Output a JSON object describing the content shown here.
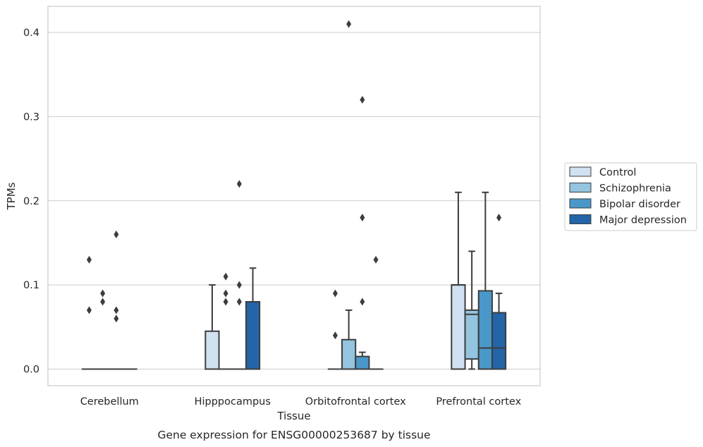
{
  "chart_data": {
    "type": "box",
    "xlabel": "Tissue",
    "ylabel": "TPMs",
    "caption": "Gene expression for ENSG00000253687 by tissue",
    "ylim": [
      -0.02,
      0.43
    ],
    "yticks": [
      0.0,
      0.1,
      0.2,
      0.3,
      0.4
    ],
    "ytick_labels": [
      "0.0",
      "0.1",
      "0.2",
      "0.3",
      "0.4"
    ],
    "grid": "horizontal",
    "legend_position": "right",
    "categories": [
      "Cerebellum",
      "Hipppocampus",
      "Orbitofrontal cortex",
      "Prefrontal cortex"
    ],
    "series": [
      {
        "name": "Control",
        "color": "#d0e1f2",
        "boxes": [
          {
            "category": "Cerebellum",
            "min": 0,
            "q1": 0,
            "median": 0,
            "q3": 0,
            "max": 0,
            "outliers": [
              0.13,
              0.07
            ]
          },
          {
            "category": "Hipppocampus",
            "min": 0,
            "q1": 0,
            "median": 0,
            "q3": 0.045,
            "max": 0.1,
            "outliers": []
          },
          {
            "category": "Orbitofrontal cortex",
            "min": 0,
            "q1": 0,
            "median": 0,
            "q3": 0,
            "max": 0,
            "outliers": [
              0.09,
              0.04
            ]
          },
          {
            "category": "Prefrontal cortex",
            "min": 0,
            "q1": 0,
            "median": 0.1,
            "q3": 0.1,
            "max": 0.21,
            "outliers": []
          }
        ]
      },
      {
        "name": "Schizophrenia",
        "color": "#94c4df",
        "boxes": [
          {
            "category": "Cerebellum",
            "min": 0,
            "q1": 0,
            "median": 0,
            "q3": 0,
            "max": 0,
            "outliers": [
              0.09,
              0.08
            ]
          },
          {
            "category": "Hipppocampus",
            "min": 0,
            "q1": 0,
            "median": 0,
            "q3": 0,
            "max": 0,
            "outliers": [
              0.11,
              0.09,
              0.08
            ]
          },
          {
            "category": "Orbitofrontal cortex",
            "min": 0,
            "q1": 0,
            "median": 0,
            "q3": 0.035,
            "max": 0.07,
            "outliers": [
              0.41
            ]
          },
          {
            "category": "Prefrontal cortex",
            "min": 0,
            "q1": 0.012,
            "median": 0.065,
            "q3": 0.07,
            "max": 0.14,
            "outliers": []
          }
        ]
      },
      {
        "name": "Bipolar disorder",
        "color": "#4a98c9",
        "boxes": [
          {
            "category": "Cerebellum",
            "min": 0,
            "q1": 0,
            "median": 0,
            "q3": 0,
            "max": 0,
            "outliers": [
              0.16,
              0.07,
              0.06
            ]
          },
          {
            "category": "Hipppocampus",
            "min": 0,
            "q1": 0,
            "median": 0,
            "q3": 0,
            "max": 0,
            "outliers": [
              0.22,
              0.1,
              0.08
            ]
          },
          {
            "category": "Orbitofrontal cortex",
            "min": 0,
            "q1": 0,
            "median": 0,
            "q3": 0.015,
            "max": 0.02,
            "outliers": [
              0.32,
              0.18,
              0.08
            ]
          },
          {
            "category": "Prefrontal cortex",
            "min": 0,
            "q1": 0,
            "median": 0.025,
            "q3": 0.093,
            "max": 0.21,
            "outliers": []
          }
        ]
      },
      {
        "name": "Major depression",
        "color": "#2365a8",
        "boxes": [
          {
            "category": "Cerebellum",
            "min": 0,
            "q1": 0,
            "median": 0,
            "q3": 0,
            "max": 0,
            "outliers": []
          },
          {
            "category": "Hipppocampus",
            "min": 0,
            "q1": 0,
            "median": 0.08,
            "q3": 0.08,
            "max": 0.12,
            "outliers": []
          },
          {
            "category": "Orbitofrontal cortex",
            "min": 0,
            "q1": 0,
            "median": 0,
            "q3": 0,
            "max": 0,
            "outliers": [
              0.13
            ]
          },
          {
            "category": "Prefrontal cortex",
            "min": 0,
            "q1": 0,
            "median": 0.025,
            "q3": 0.067,
            "max": 0.09,
            "outliers": [
              0.18
            ]
          }
        ]
      }
    ]
  }
}
